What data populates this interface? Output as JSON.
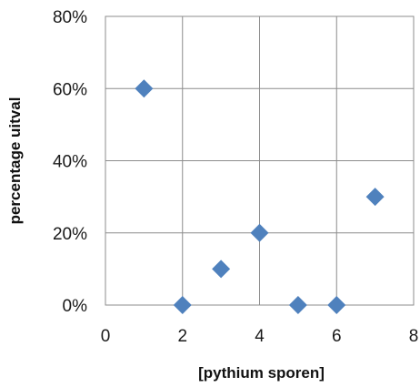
{
  "chart_data": {
    "type": "scatter",
    "xlabel": "[pythium sporen]",
    "ylabel": "percentage uitval",
    "xlim": [
      0,
      8
    ],
    "ylim": [
      0,
      0.8
    ],
    "x_ticks": [
      0,
      2,
      4,
      6,
      8
    ],
    "x_tick_labels": [
      "0",
      "2",
      "4",
      "6",
      "8"
    ],
    "y_ticks": [
      0,
      0.2,
      0.4,
      0.6,
      0.8
    ],
    "y_tick_labels": [
      "0%",
      "20%",
      "40%",
      "60%",
      "80%"
    ],
    "grid": true,
    "marker": "diamond",
    "marker_color": "#4f81bd",
    "series": [
      {
        "points": [
          {
            "x": 1,
            "y": 0.6
          },
          {
            "x": 2,
            "y": 0.0
          },
          {
            "x": 3,
            "y": 0.1
          },
          {
            "x": 4,
            "y": 0.2
          },
          {
            "x": 5,
            "y": 0.0
          },
          {
            "x": 6,
            "y": 0.0
          },
          {
            "x": 7,
            "y": 0.3
          }
        ]
      }
    ]
  }
}
